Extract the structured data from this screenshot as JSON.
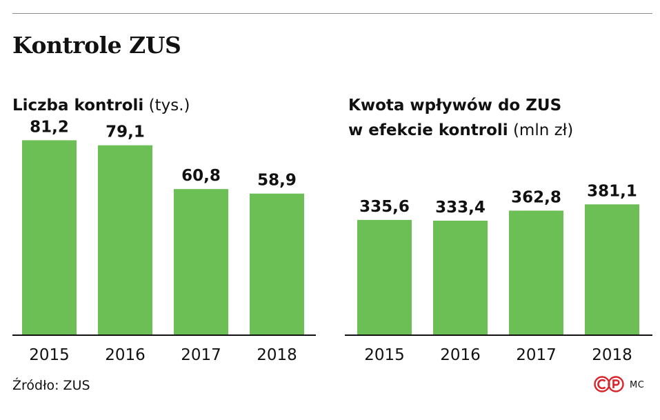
{
  "title": "Kontrole ZUS",
  "chart_data": [
    {
      "type": "bar",
      "title": "Liczba kontroli",
      "unit": "(tys.)",
      "categories": [
        "2015",
        "2016",
        "2017",
        "2018"
      ],
      "values": [
        81.2,
        79.1,
        60.8,
        58.9
      ],
      "value_labels": [
        "81,2",
        "79,1",
        "60,8",
        "58,9"
      ],
      "ylim": [
        0,
        86.5
      ],
      "color": "#6cbf55"
    },
    {
      "type": "bar",
      "title_line1": "Kwota wpływów do ZUS",
      "title_line2": "w efekcie kontroli",
      "unit": "(mln zł)",
      "categories": [
        "2015",
        "2016",
        "2017",
        "2018"
      ],
      "values": [
        335.6,
        333.4,
        362.8,
        381.1
      ],
      "value_labels": [
        "335,6",
        "333,4",
        "362,8",
        "381,1"
      ],
      "ylim": [
        0,
        606
      ],
      "color": "#6cbf55"
    }
  ],
  "footer": {
    "source": "Źródło: ZUS",
    "logo": "CP",
    "author": "MC"
  },
  "colors": {
    "bar": "#6cbf55",
    "logo": "#d9232a",
    "axis": "#111111"
  }
}
